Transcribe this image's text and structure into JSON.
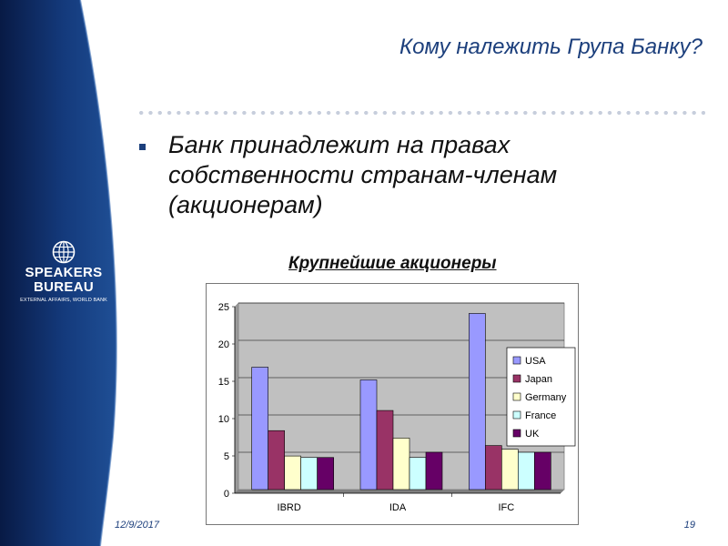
{
  "slide": {
    "title": "Кому належить Група Банку?",
    "bullet": "Банк принадлежит на правах собственности странам-членам (акционерам)",
    "date": "12/9/2017",
    "page_number": "19"
  },
  "logo": {
    "line1": "SPEAKERS",
    "line2": "BUREAU",
    "subline": "EXTERNAL AFFAIRS, WORLD BANK"
  },
  "colors": {
    "title": "#1c3f7c",
    "panel_dark": "#0a2356",
    "panel_mid": "#1f4f95",
    "plot_background": "#c0c0c0"
  },
  "chart_data": {
    "type": "bar",
    "title": "Крупнейшие акционеры",
    "xlabel": "",
    "ylabel": "",
    "ylim": [
      0,
      25
    ],
    "yticks": [
      "0",
      "5",
      "10",
      "15",
      "20",
      "25"
    ],
    "grid": true,
    "legend_position": "right",
    "categories": [
      "IBRD",
      "IDA",
      "IFC"
    ],
    "series": [
      {
        "name": "USA",
        "color": "#9999ff",
        "values": [
          16.4,
          14.7,
          23.6
        ]
      },
      {
        "name": "Japan",
        "color": "#993366",
        "values": [
          7.9,
          10.6,
          5.9
        ]
      },
      {
        "name": "Germany",
        "color": "#ffffcc",
        "values": [
          4.5,
          6.9,
          5.4
        ]
      },
      {
        "name": "France",
        "color": "#ccffff",
        "values": [
          4.3,
          4.3,
          5.0
        ]
      },
      {
        "name": "UK",
        "color": "#660066",
        "values": [
          4.3,
          5.0,
          5.0
        ]
      }
    ]
  }
}
